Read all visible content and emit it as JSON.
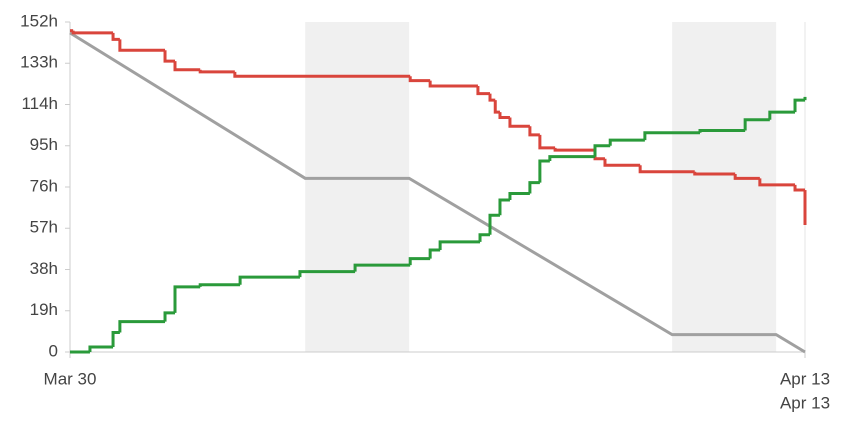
{
  "chart_data": {
    "type": "step-line",
    "xlim": [
      0,
      14
    ],
    "xticks": [
      {
        "value": 0,
        "label": "Mar 30"
      },
      {
        "value": 14,
        "label": "Apr 13"
      }
    ],
    "x_sublabel": "Apr 13",
    "ylim": [
      0,
      152
    ],
    "yticks": [
      0,
      {
        "value": 19,
        "label": "19h"
      },
      {
        "value": 38,
        "label": "38h"
      },
      {
        "value": 57,
        "label": "57h"
      },
      {
        "value": 76,
        "label": "76h"
      },
      {
        "value": 95,
        "label": "95h"
      },
      {
        "value": 114,
        "label": "114h"
      },
      {
        "value": 133,
        "label": "133h"
      },
      {
        "value": 152,
        "label": "152h"
      }
    ],
    "shaded_ranges": [
      [
        4.48,
        6.46
      ],
      [
        11.47,
        13.45
      ]
    ],
    "shade_color": "#f0f0f0",
    "ideal": {
      "color": "#a0a0a0",
      "x": [
        0,
        4.48,
        6.46,
        11.47,
        13.45,
        14
      ],
      "values": [
        147,
        80,
        80,
        8,
        8,
        0
      ]
    },
    "series": [
      {
        "color": "#d9453c",
        "x": [
          0,
          0.06,
          0.82,
          0.95,
          1.81,
          2.0,
          2.48,
          3.14,
          6.48,
          6.86,
          7.77,
          8.0,
          8.1,
          8.19,
          8.38,
          8.76,
          8.95,
          9.24,
          10.0,
          10.19,
          10.86,
          11.9,
          12.67,
          13.14,
          13.81,
          14
        ],
        "values": [
          148,
          147,
          144,
          139,
          134,
          130,
          129,
          127,
          125,
          122.5,
          119,
          116,
          110.5,
          108,
          104,
          100,
          94,
          93,
          89,
          86,
          83,
          82,
          80,
          77,
          74.6,
          58.5
        ]
      },
      {
        "color": "#2a9a3a",
        "x": [
          0,
          0.38,
          0.82,
          0.95,
          1.81,
          2.0,
          2.48,
          3.24,
          4.38,
          5.43,
          6.48,
          6.86,
          7.05,
          7.81,
          8.0,
          8.19,
          8.38,
          8.76,
          8.95,
          9.14,
          10.0,
          10.29,
          10.95,
          12.0,
          12.86,
          13.33,
          13.81,
          14
        ],
        "values": [
          0,
          2.3,
          9,
          14,
          18,
          30,
          31,
          34.5,
          37,
          40,
          43,
          47,
          50.7,
          54,
          63,
          70,
          73,
          78,
          88,
          90,
          95,
          97.6,
          101,
          102,
          107,
          110.5,
          116,
          117.5
        ]
      }
    ]
  }
}
